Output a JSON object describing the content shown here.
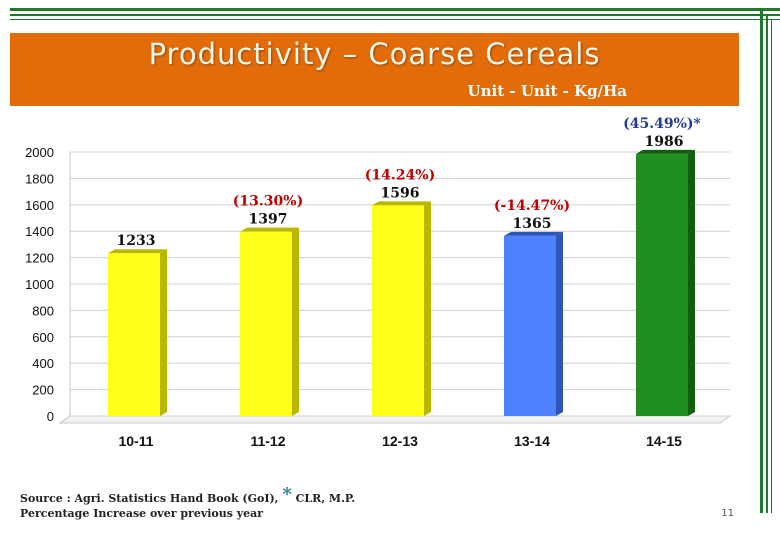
{
  "slide": {
    "title": "Productivity – Coarse Cereals",
    "unit": "Unit - Unit - Kg/Ha",
    "page_number": "11"
  },
  "footer": {
    "source_prefix": "Source : Agri. Statistics Hand Book (GoI), ",
    "source_star": "*",
    "source_suffix": "CLR, M.P.",
    "note": "Percentage Increase over previous year"
  },
  "colors": {
    "banner": "#e36c0a",
    "pct_label": "#c00000",
    "last_pct_label": "#1f3b99",
    "bar_front": [
      "#ffff1a",
      "#ffff1a",
      "#ffff1a",
      "#4f81ff",
      "#1f8f1f"
    ],
    "bar_side": [
      "#b8b800",
      "#b8b800",
      "#b8b800",
      "#2d55b5",
      "#0f5f0f"
    ]
  },
  "chart_data": {
    "type": "bar",
    "categories": [
      "10-11",
      "11-12",
      "12-13",
      "13-14",
      "14-15"
    ],
    "values": [
      1233,
      1397,
      1596,
      1365,
      1986
    ],
    "value_labels": [
      "1233",
      "1397",
      "1596",
      "1365",
      "1986"
    ],
    "change_labels": [
      "",
      "(13.30%)",
      "(14.24%)",
      "(-14.47%)",
      "(45.49%)*"
    ],
    "yticks": [
      0,
      200,
      400,
      600,
      800,
      1000,
      1200,
      1400,
      1600,
      1800,
      2000
    ],
    "ylim": [
      0,
      2000
    ],
    "grid": true,
    "title": "",
    "xlabel": "",
    "ylabel": ""
  }
}
